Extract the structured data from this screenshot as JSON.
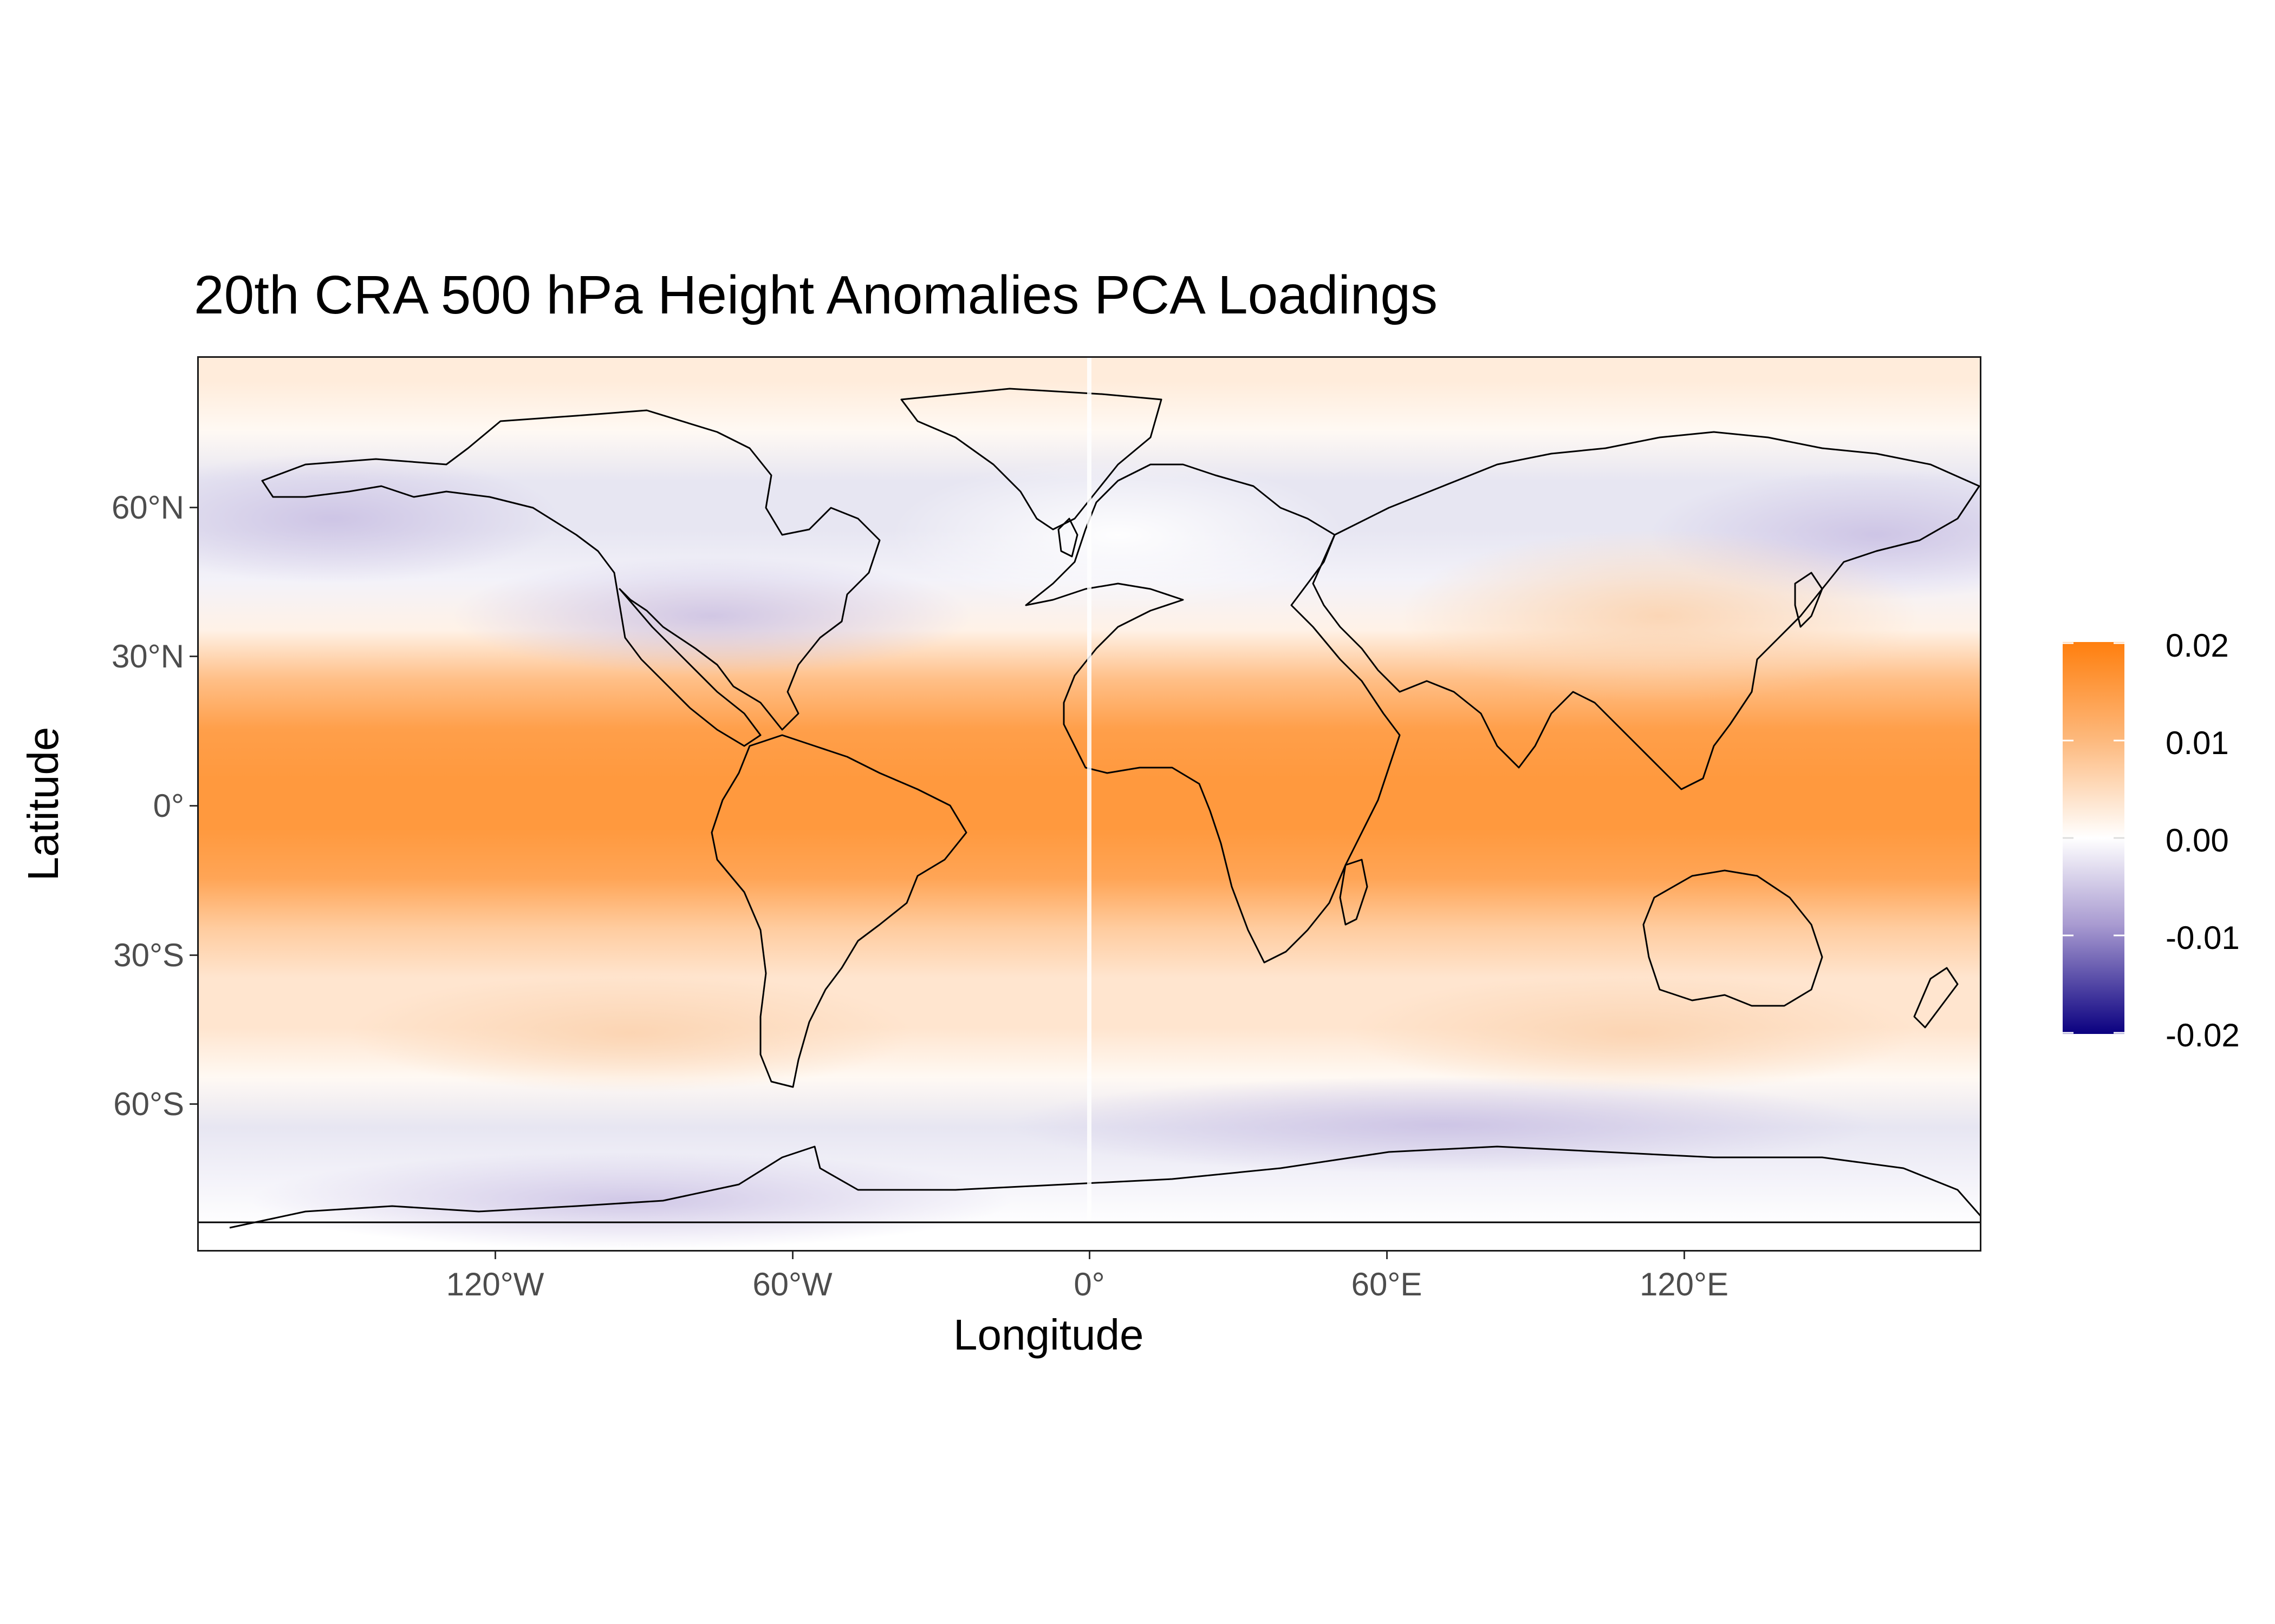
{
  "title": "20th CRA 500 hPa Height Anomalies PCA Loadings",
  "x_axis": {
    "label": "Longitude",
    "ticks": [
      "120°W",
      "60°W",
      "0°",
      "60°E",
      "120°E"
    ]
  },
  "y_axis": {
    "label": "Latitude",
    "ticks": [
      "60°N",
      "30°N",
      "0°",
      "30°S",
      "60°S"
    ]
  },
  "legend": {
    "labels": [
      "0.02",
      "0.01",
      "0.00",
      "-0.01",
      "-0.02"
    ],
    "colors": {
      "high": "#ff7f0e",
      "mid": "#ffffff",
      "low": "#0a0080"
    }
  },
  "chart_data": {
    "type": "heatmap",
    "title": "20th CRA 500 hPa Height Anomalies PCA Loadings",
    "xlabel": "Longitude",
    "ylabel": "Latitude",
    "xlim": [
      -180,
      180
    ],
    "ylim": [
      -90,
      90
    ],
    "x_ticks": [
      -120,
      -60,
      0,
      60,
      120
    ],
    "y_ticks": [
      60,
      30,
      0,
      -30,
      -60
    ],
    "color_scale": {
      "min": -0.02,
      "mid": 0.0,
      "max": 0.02
    },
    "zonal_profile": [
      {
        "lat": 85,
        "value": 0.003
      },
      {
        "lat": 75,
        "value": 0.001
      },
      {
        "lat": 65,
        "value": -0.002
      },
      {
        "lat": 55,
        "value": -0.002
      },
      {
        "lat": 45,
        "value": -0.001
      },
      {
        "lat": 35,
        "value": 0.002
      },
      {
        "lat": 25,
        "value": 0.01
      },
      {
        "lat": 15,
        "value": 0.015
      },
      {
        "lat": 5,
        "value": 0.016
      },
      {
        "lat": -5,
        "value": 0.016
      },
      {
        "lat": -15,
        "value": 0.014
      },
      {
        "lat": -25,
        "value": 0.008
      },
      {
        "lat": -35,
        "value": 0.004
      },
      {
        "lat": -45,
        "value": 0.004
      },
      {
        "lat": -55,
        "value": 0.001
      },
      {
        "lat": -65,
        "value": -0.002
      },
      {
        "lat": -75,
        "value": -0.001
      },
      {
        "lat": -85,
        "value": 0.0
      }
    ],
    "grid": true,
    "legend": "right"
  }
}
